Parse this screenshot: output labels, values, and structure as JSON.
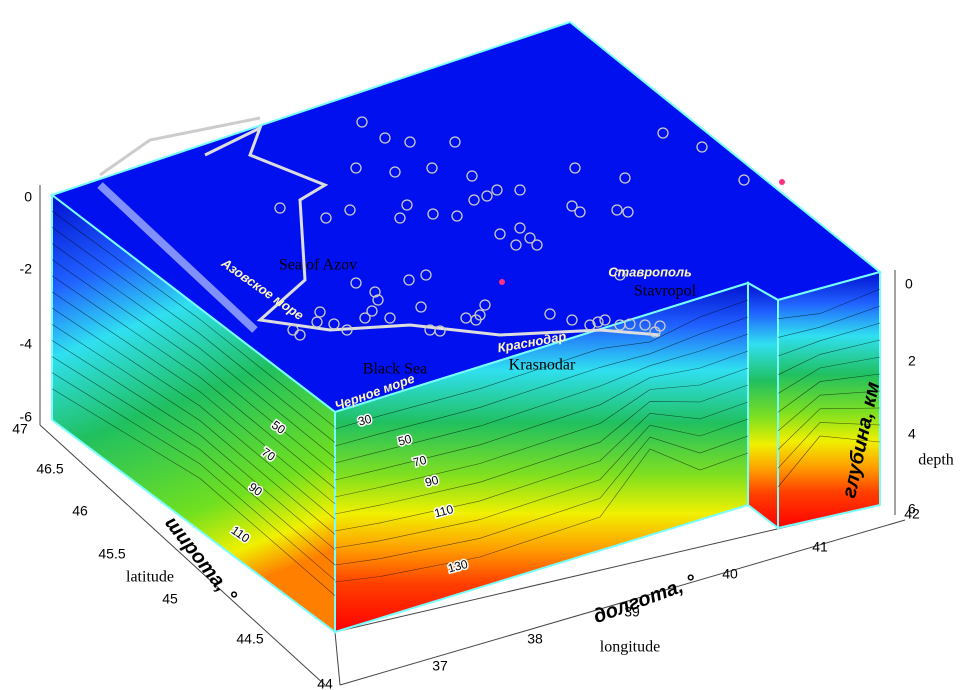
{
  "axes": {
    "left_depth_ticks": [
      "0",
      "-2",
      "-4",
      "-6"
    ],
    "latitude_ticks": [
      "47",
      "46.5",
      "46",
      "45.5",
      "45",
      "44.5",
      "44"
    ],
    "longitude_ticks": [
      "37",
      "38",
      "39",
      "40",
      "41",
      "42"
    ],
    "right_depth_ticks": [
      "0",
      "2",
      "4",
      "6"
    ],
    "latitude_title": "широта, °",
    "latitude_label": "latitude",
    "longitude_title": "долгота, °",
    "longitude_label": "longitude",
    "depth_title": "глубина, км",
    "depth_label": "depth"
  },
  "map_labels": {
    "azov_ru": "Азовское море",
    "azov_en": "Sea of Azov",
    "stavropol_ru": "Ставрополь",
    "stavropol_en": "Stavropol",
    "krasnodar_ru": "Краснодар",
    "krasnodar_en": "Krasnodar",
    "black_sea_en": "Black Sea",
    "black_sea_ru": "Черное море"
  },
  "contour_labels": {
    "left": [
      "50",
      "70",
      "90",
      "110"
    ],
    "front": [
      "30",
      "50",
      "70",
      "90",
      "110",
      "130"
    ]
  }
}
